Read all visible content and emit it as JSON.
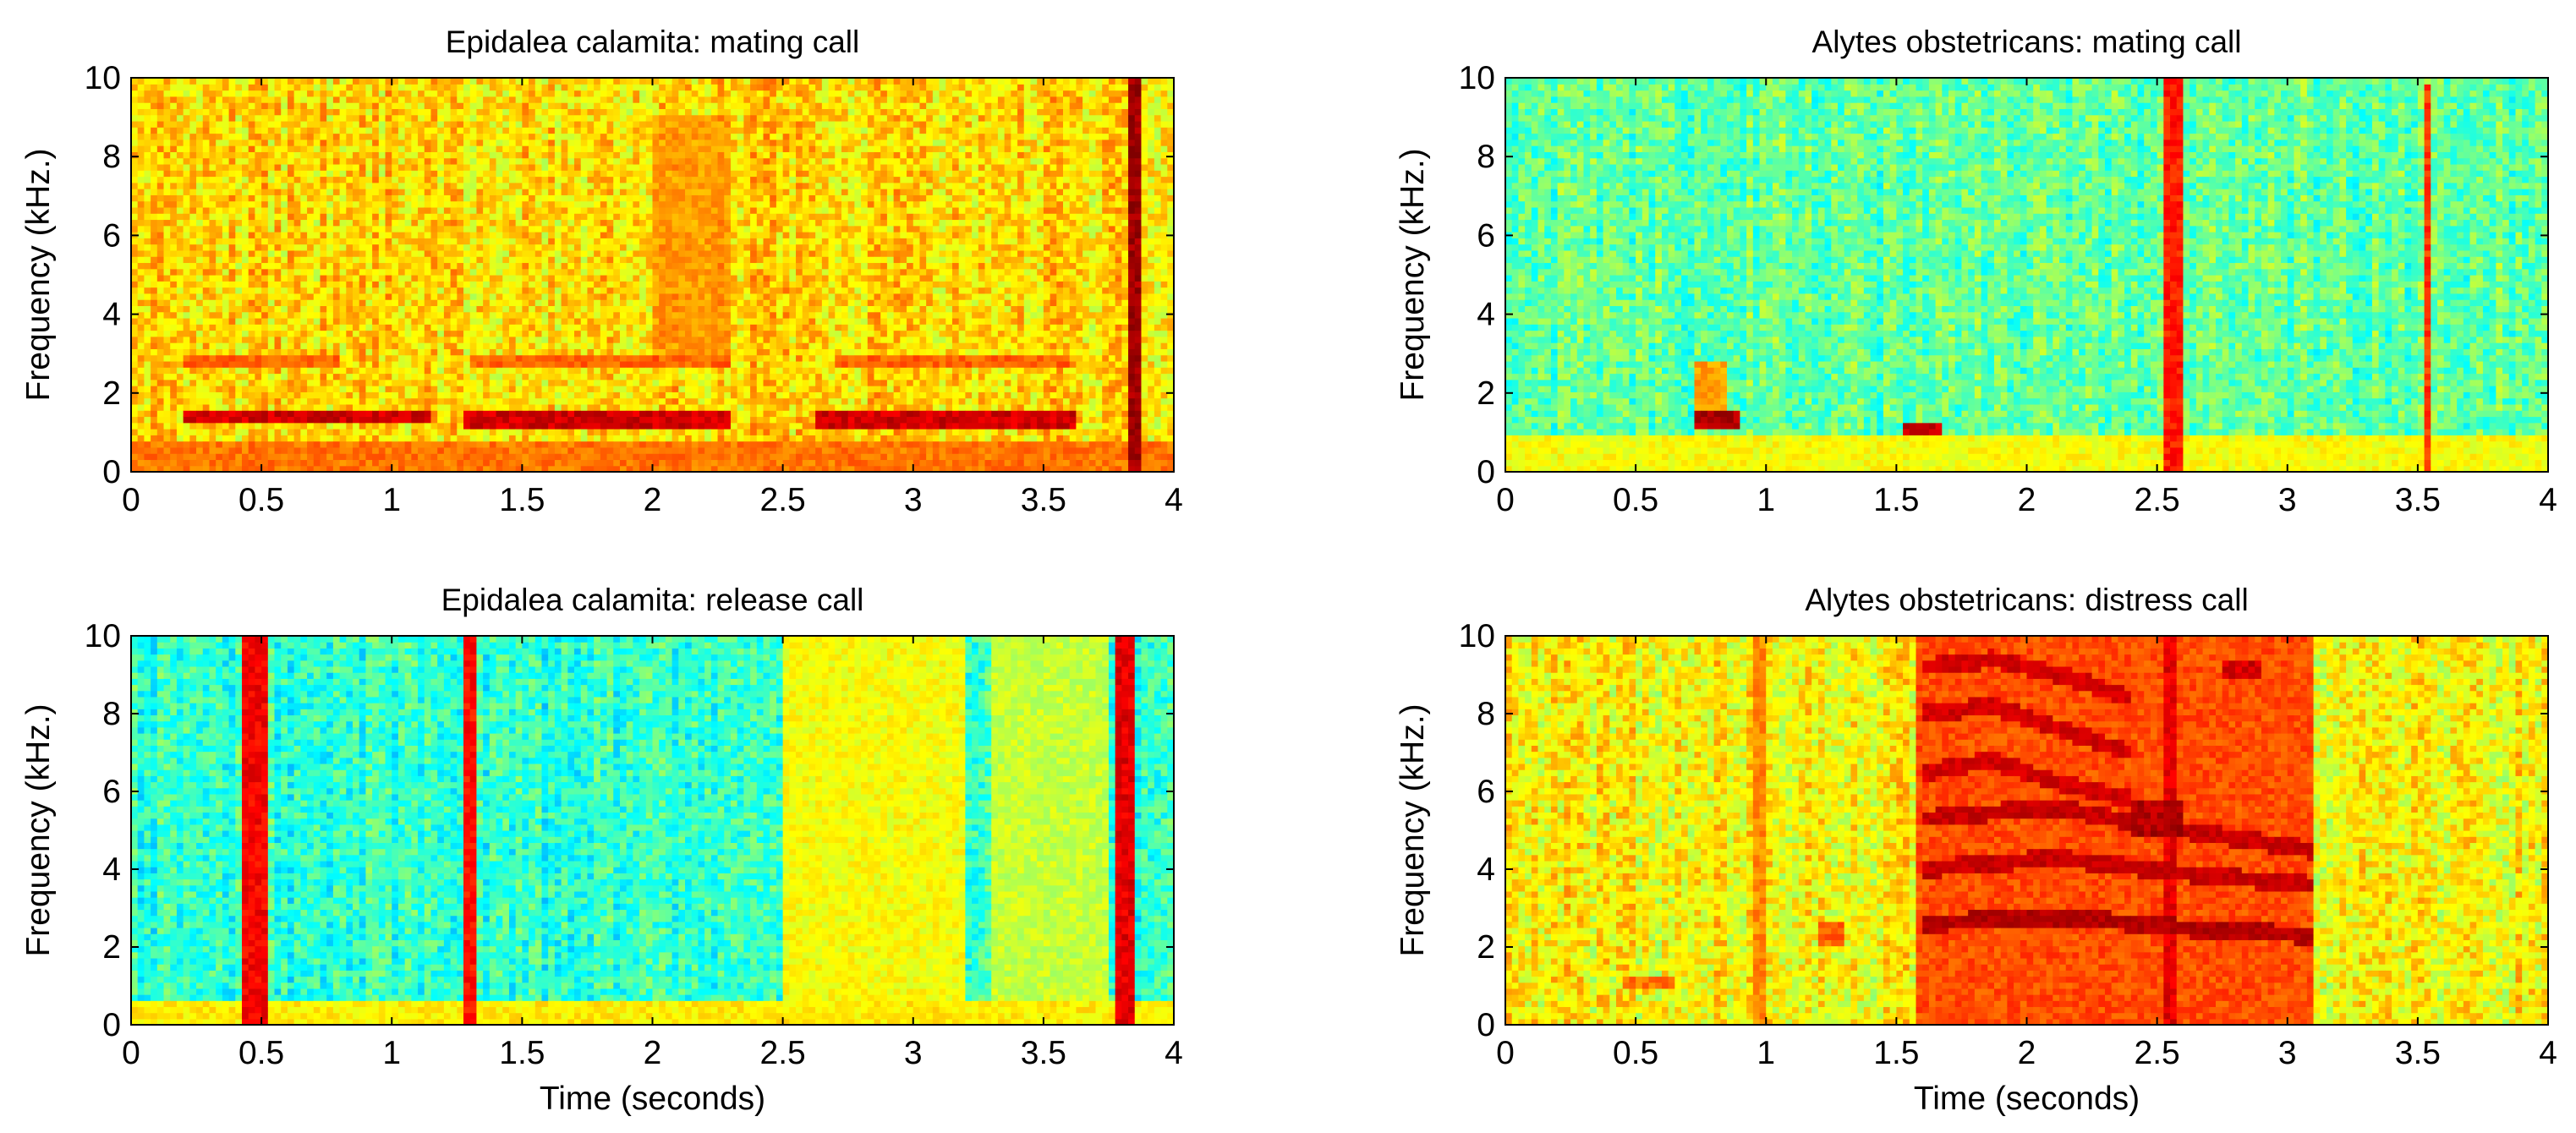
{
  "colors": {
    "axis": "#000000",
    "background": "#ffffff",
    "colormap": "jet"
  },
  "chart_data": [
    {
      "type": "heatmap",
      "title": "Epidalea calamita: mating call",
      "xlabel": "",
      "ylabel": "Frequency (kHz.)",
      "xlim": [
        0,
        4
      ],
      "ylim": [
        0,
        10
      ],
      "xticks": [
        0,
        0.5,
        1,
        1.5,
        2,
        2.5,
        3,
        3.5,
        4
      ],
      "xtick_labels": [
        "0",
        "0.5",
        "1",
        "1.5",
        "2",
        "2.5",
        "3",
        "3.5",
        "4"
      ],
      "yticks": [
        0,
        2,
        4,
        6,
        8,
        10
      ],
      "ytick_labels": [
        "0",
        "2",
        "4",
        "6",
        "8",
        "10"
      ],
      "background_level": 0.66,
      "features": [
        {
          "kind": "band",
          "t0": 0.2,
          "t1": 1.15,
          "f0": 1.2,
          "f1": 1.6,
          "level": 0.92
        },
        {
          "kind": "band",
          "t0": 1.28,
          "t1": 2.3,
          "f0": 1.1,
          "f1": 1.5,
          "level": 0.92
        },
        {
          "kind": "band",
          "t0": 2.62,
          "t1": 3.62,
          "f0": 1.1,
          "f1": 1.5,
          "level": 0.92
        },
        {
          "kind": "band",
          "t0": 0.2,
          "t1": 0.8,
          "f0": 2.6,
          "f1": 3.0,
          "level": 0.78
        },
        {
          "kind": "band",
          "t0": 1.3,
          "t1": 2.3,
          "f0": 2.6,
          "f1": 3.0,
          "level": 0.78
        },
        {
          "kind": "band",
          "t0": 2.7,
          "t1": 3.6,
          "f0": 2.7,
          "f1": 3.0,
          "level": 0.78
        },
        {
          "kind": "band",
          "t0": 0.0,
          "t1": 4.0,
          "f0": 0.0,
          "f1": 0.8,
          "level": 0.76
        },
        {
          "kind": "band",
          "t0": 3.82,
          "t1": 3.87,
          "f0": 0.0,
          "f1": 10.0,
          "level": 0.97
        },
        {
          "kind": "band",
          "t0": 2.0,
          "t1": 2.3,
          "f0": 3.0,
          "f1": 9.0,
          "level": 0.72
        }
      ]
    },
    {
      "type": "heatmap",
      "title": "Alytes obstetricans: mating call",
      "xlabel": "",
      "ylabel": "Frequency (kHz.)",
      "xlim": [
        0,
        4
      ],
      "ylim": [
        0,
        10
      ],
      "xticks": [
        0,
        0.5,
        1,
        1.5,
        2,
        2.5,
        3,
        3.5,
        4
      ],
      "xtick_labels": [
        "0",
        "0.5",
        "1",
        "1.5",
        "2",
        "2.5",
        "3",
        "3.5",
        "4"
      ],
      "yticks": [
        0,
        2,
        4,
        6,
        8,
        10
      ],
      "ytick_labels": [
        "0",
        "2",
        "4",
        "6",
        "8",
        "10"
      ],
      "background_level": 0.47,
      "features": [
        {
          "kind": "band",
          "t0": 0.73,
          "t1": 0.9,
          "f0": 1.1,
          "f1": 1.5,
          "level": 0.95
        },
        {
          "kind": "band",
          "t0": 0.73,
          "t1": 0.85,
          "f0": 1.5,
          "f1": 2.8,
          "level": 0.72
        },
        {
          "kind": "band",
          "t0": 1.52,
          "t1": 1.68,
          "f0": 0.9,
          "f1": 1.3,
          "level": 0.92
        },
        {
          "kind": "band",
          "t0": 2.52,
          "t1": 2.6,
          "f0": 0.0,
          "f1": 10.0,
          "level": 0.85
        },
        {
          "kind": "band",
          "t0": 3.52,
          "t1": 3.56,
          "f0": 0.0,
          "f1": 9.8,
          "level": 0.82
        },
        {
          "kind": "band",
          "t0": 0.0,
          "t1": 4.0,
          "f0": 0.0,
          "f1": 0.9,
          "level": 0.62
        },
        {
          "kind": "band",
          "t0": 3.6,
          "t1": 3.8,
          "f0": 0.5,
          "f1": 10.0,
          "level": 0.38
        }
      ]
    },
    {
      "type": "heatmap",
      "title": "Epidalea calamita: release call",
      "xlabel": "Time (seconds)",
      "ylabel": "Frequency (kHz.)",
      "xlim": [
        0,
        4
      ],
      "ylim": [
        0,
        10
      ],
      "xticks": [
        0,
        0.5,
        1,
        1.5,
        2,
        2.5,
        3,
        3.5,
        4
      ],
      "xtick_labels": [
        "0",
        "0.5",
        "1",
        "1.5",
        "2",
        "2.5",
        "3",
        "3.5",
        "4"
      ],
      "yticks": [
        0,
        2,
        4,
        6,
        8,
        10
      ],
      "ytick_labels": [
        "0",
        "2",
        "4",
        "6",
        "8",
        "10"
      ],
      "background_level": 0.42,
      "features": [
        {
          "kind": "band",
          "t0": 0.43,
          "t1": 0.53,
          "f0": 0.0,
          "f1": 10.0,
          "level": 0.88
        },
        {
          "kind": "band",
          "t0": 1.28,
          "t1": 1.33,
          "f0": 0.0,
          "f1": 10.0,
          "level": 0.86
        },
        {
          "kind": "band",
          "t0": 3.77,
          "t1": 3.85,
          "f0": 0.0,
          "f1": 10.0,
          "level": 0.9
        },
        {
          "kind": "band",
          "t0": 2.5,
          "t1": 3.2,
          "f0": 0.0,
          "f1": 10.0,
          "level": 0.62
        },
        {
          "kind": "band",
          "t0": 3.3,
          "t1": 3.75,
          "f0": 0.0,
          "f1": 10.0,
          "level": 0.57
        },
        {
          "kind": "band",
          "t0": 0.0,
          "t1": 4.0,
          "f0": 0.0,
          "f1": 0.6,
          "level": 0.64
        }
      ]
    },
    {
      "type": "heatmap",
      "title": "Alytes obstetricans: distress call",
      "xlabel": "Time (seconds)",
      "ylabel": "Frequency (kHz.)",
      "xlim": [
        0,
        4
      ],
      "ylim": [
        0,
        10
      ],
      "xticks": [
        0,
        0.5,
        1,
        1.5,
        2,
        2.5,
        3,
        3.5,
        4
      ],
      "xtick_labels": [
        "0",
        "0.5",
        "1",
        "1.5",
        "2",
        "2.5",
        "3",
        "3.5",
        "4"
      ],
      "yticks": [
        0,
        2,
        4,
        6,
        8,
        10
      ],
      "ytick_labels": [
        "0",
        "2",
        "4",
        "6",
        "8",
        "10"
      ],
      "background_level": 0.63,
      "features": [
        {
          "kind": "band",
          "t0": 1.58,
          "t1": 3.1,
          "f0": 0.0,
          "f1": 10.0,
          "level": 0.8
        },
        {
          "kind": "band",
          "t0": 0.45,
          "t1": 0.65,
          "f0": 1.0,
          "f1": 1.3,
          "level": 0.76
        },
        {
          "kind": "band",
          "t0": 0.95,
          "t1": 1.0,
          "f0": 0.0,
          "f1": 10.0,
          "level": 0.74
        },
        {
          "kind": "band",
          "t0": 1.2,
          "t1": 1.3,
          "f0": 2.0,
          "f1": 2.6,
          "level": 0.78
        },
        {
          "kind": "band",
          "t0": 2.75,
          "t1": 2.9,
          "f0": 8.9,
          "f1": 9.4,
          "level": 0.92
        },
        {
          "kind": "band",
          "t0": 2.4,
          "t1": 2.6,
          "f0": 4.8,
          "f1": 5.8,
          "level": 0.95
        },
        {
          "kind": "band",
          "t0": 2.52,
          "t1": 2.58,
          "f0": 0.0,
          "f1": 10.0,
          "level": 0.9
        },
        {
          "kind": "harmonic",
          "t0": 1.6,
          "t1": 3.1,
          "f": [
            2.6,
            2.8,
            2.5,
            2.3
          ],
          "level": 0.95
        },
        {
          "kind": "harmonic",
          "t0": 1.6,
          "t1": 3.1,
          "f": [
            4.0,
            4.3,
            3.9,
            3.6
          ],
          "level": 0.93
        },
        {
          "kind": "harmonic",
          "t0": 1.6,
          "t1": 3.1,
          "f": [
            5.3,
            5.6,
            5.0,
            4.5
          ],
          "level": 0.93
        },
        {
          "kind": "harmonic",
          "t0": 1.6,
          "t1": 2.4,
          "f": [
            6.5,
            6.8,
            6.2,
            5.8
          ],
          "level": 0.92
        },
        {
          "kind": "harmonic",
          "t0": 1.6,
          "t1": 2.4,
          "f": [
            8.0,
            8.2,
            7.6,
            7.0
          ],
          "level": 0.92
        },
        {
          "kind": "harmonic",
          "t0": 1.6,
          "t1": 2.4,
          "f": [
            9.2,
            9.4,
            9.0,
            8.4
          ],
          "level": 0.92
        }
      ]
    }
  ]
}
